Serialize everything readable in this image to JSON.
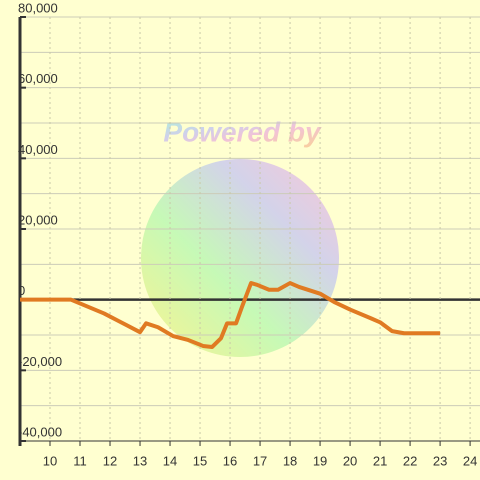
{
  "chart_data": {
    "type": "line",
    "watermark": "Powered by",
    "x": [
      9,
      10.7,
      11.8,
      12.3,
      13,
      13.2,
      13.6,
      14.1,
      14.6,
      15.1,
      15.4,
      15.7,
      15.9,
      16.2,
      16.4,
      16.7,
      16.9,
      17.3,
      17.6,
      18,
      18.3,
      19,
      19.5,
      20,
      20.7,
      21,
      21.4,
      21.8,
      23
    ],
    "series": [
      {
        "color": "#e07a22",
        "values": [
          0,
          0,
          -3900,
          -6100,
          -9200,
          -6700,
          -7800,
          -10300,
          -11400,
          -13100,
          -13400,
          -10900,
          -6700,
          -6700,
          -2000,
          4700,
          4200,
          2800,
          2800,
          4700,
          3600,
          1700,
          -800,
          -2800,
          -5300,
          -6400,
          -8900,
          -9500,
          -9500
        ]
      }
    ],
    "xlim": [
      9,
      24.33
    ],
    "xticks": [
      10,
      11,
      12,
      13,
      14,
      15,
      16,
      17,
      18,
      19,
      20,
      21,
      22,
      23,
      24
    ],
    "ylim": [
      -40000,
      80000
    ],
    "yticks": [
      {
        "value": -40000,
        "label": "-40,000"
      },
      {
        "value": -20000,
        "label": "-20,000"
      },
      0,
      {
        "value": 20000,
        "label": "20,000"
      },
      {
        "value": 40000,
        "label": "40,000"
      },
      {
        "value": 60000,
        "label": "60,000"
      },
      {
        "value": 80000,
        "label": "80,000"
      }
    ],
    "yminor": [
      -30000,
      -10000,
      10000,
      30000,
      50000,
      70000
    ],
    "grid": true
  }
}
